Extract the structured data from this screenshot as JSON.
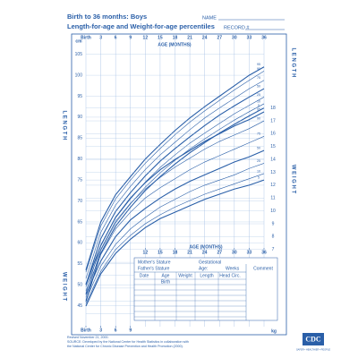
{
  "header": {
    "title": "Birth to 36 months: Boys",
    "subtitle": "Length-for-age and Weight-for-age percentiles",
    "name_label": "NAME",
    "record_label": "RECORD #"
  },
  "side_labels": {
    "length": "L E N G T H",
    "weight": "W E I G H T",
    "cm": "cm",
    "kg": "kg"
  },
  "chart_data": [
    {
      "type": "line",
      "y_label": "LENGTH",
      "x_label": "AGE (MONTHS)",
      "x": [
        0,
        3,
        6,
        9,
        12,
        15,
        18,
        21,
        24,
        27,
        30,
        33,
        36
      ],
      "xlim": [
        0,
        36
      ],
      "xticks": [
        {
          "value": 0,
          "label": "Birth"
        },
        3,
        6,
        9,
        12,
        15,
        18,
        21,
        24,
        27,
        30,
        33,
        36
      ],
      "ylim": [
        40,
        106
      ],
      "yticks": [
        45,
        50,
        55,
        60,
        65,
        70,
        75,
        80,
        85,
        90,
        95,
        100,
        105
      ],
      "series": [
        {
          "name": "95",
          "color": "#2a5fa8",
          "values": [
            53.5,
            65,
            71.5,
            75.8,
            80,
            83.5,
            86.8,
            89.8,
            92.5,
            95,
            97.5,
            100,
            102
          ]
        },
        {
          "name": "90",
          "color": "#2a5fa8",
          "values": [
            53,
            64,
            70.5,
            75,
            79,
            82.5,
            85.8,
            88.8,
            91.5,
            94,
            96.5,
            98.8,
            101
          ]
        },
        {
          "name": "75",
          "color": "#2a5fa8",
          "values": [
            51.5,
            62.5,
            69,
            73.5,
            77.5,
            81,
            84,
            87,
            89.8,
            92.2,
            94.5,
            96.8,
            98.8
          ]
        },
        {
          "name": "50",
          "color": "#2a5fa8",
          "values": [
            50,
            61,
            67.5,
            72,
            76,
            79.5,
            82.5,
            85.3,
            88,
            90.5,
            92.7,
            94.8,
            96.8
          ]
        },
        {
          "name": "25",
          "color": "#2a5fa8",
          "values": [
            48,
            59.5,
            66,
            70.5,
            74.5,
            78,
            81,
            83.8,
            86.2,
            88.5,
            90.8,
            92.8,
            94.8
          ]
        },
        {
          "name": "10",
          "color": "#2a5fa8",
          "values": [
            47,
            58.2,
            64.8,
            69.3,
            73.3,
            76.7,
            79.7,
            82.4,
            84.8,
            87.1,
            89.3,
            91.3,
            93.2
          ]
        },
        {
          "name": "5",
          "color": "#2a5fa8",
          "values": [
            46,
            57.5,
            64,
            68.5,
            72.5,
            75.8,
            78.8,
            81.5,
            83.9,
            86.2,
            88.3,
            90.3,
            92.2
          ]
        }
      ]
    },
    {
      "type": "line",
      "y_label": "WEIGHT",
      "x_label": "AGE (MONTHS)",
      "x": [
        0,
        3,
        6,
        9,
        12,
        15,
        18,
        21,
        24,
        27,
        30,
        33,
        36
      ],
      "xlim": [
        0,
        36
      ],
      "xticks": [
        {
          "value": 0,
          "label": "Birth"
        },
        3,
        6,
        9,
        12,
        15,
        18,
        21,
        24,
        27,
        30,
        33,
        36
      ],
      "ylim": [
        1,
        22.5
      ],
      "yticks": [
        2,
        3,
        4,
        5,
        6,
        7,
        8,
        9,
        10,
        11,
        12,
        13,
        14,
        15,
        16,
        17,
        18
      ],
      "series": [
        {
          "name": "95",
          "color": "#2a5fa8",
          "values": [
            4.3,
            7.3,
            9.5,
            11,
            12.2,
            13.2,
            14,
            14.7,
            15.4,
            16,
            16.6,
            17.1,
            17.7
          ]
        },
        {
          "name": "90",
          "color": "#2a5fa8",
          "values": [
            4.1,
            7,
            9.2,
            10.6,
            11.7,
            12.6,
            13.4,
            14.1,
            14.8,
            15.4,
            15.9,
            16.4,
            17
          ]
        },
        {
          "name": "75",
          "color": "#2a5fa8",
          "values": [
            3.8,
            6.6,
            8.6,
            9.9,
            11,
            11.8,
            12.5,
            13.2,
            13.8,
            14.3,
            14.8,
            15.3,
            15.8
          ]
        },
        {
          "name": "50",
          "color": "#2a5fa8",
          "values": [
            3.5,
            6.1,
            8,
            9.3,
            10.2,
            11,
            11.7,
            12.3,
            12.8,
            13.3,
            13.8,
            14.2,
            14.7
          ]
        },
        {
          "name": "25",
          "color": "#2a5fa8",
          "values": [
            3.1,
            5.7,
            7.4,
            8.6,
            9.5,
            10.3,
            10.9,
            11.5,
            12,
            12.4,
            12.8,
            13.3,
            13.7
          ]
        },
        {
          "name": "10",
          "color": "#2a5fa8",
          "values": [
            2.8,
            5.3,
            7,
            8.1,
            9,
            9.7,
            10.3,
            10.8,
            11.3,
            11.7,
            12.1,
            12.5,
            12.9
          ]
        },
        {
          "name": "5",
          "color": "#2a5fa8",
          "values": [
            2.6,
            5.1,
            6.7,
            7.8,
            8.7,
            9.4,
            9.9,
            10.4,
            10.9,
            11.3,
            11.7,
            12,
            12.4
          ]
        }
      ]
    }
  ],
  "form": {
    "mother": "Mother's Stature",
    "father": "Father's Stature",
    "gestational": "Gestational",
    "age": "Age:",
    "weeks": "Weeks",
    "comment": "Comment",
    "columns": [
      "Date",
      "Age",
      "Weight",
      "Length",
      "Head Circ."
    ],
    "birth": "Birth"
  },
  "footer": {
    "revised": "Revised November 21, 2000.",
    "source": "SOURCE: Developed by the National Center for Health Statistics in collaboration with",
    "source2": "the National Center for Chronic Disease Prevention and Health Promotion (2000).",
    "logo": "CDC",
    "tagline": "SAFER • HEALTHIER • PEOPLE"
  }
}
